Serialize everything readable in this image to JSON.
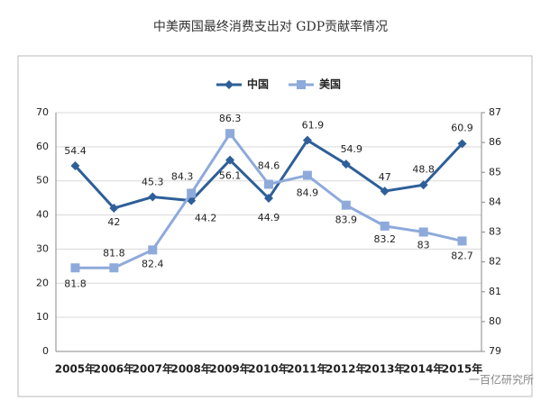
{
  "chart_data": {
    "type": "line",
    "title": "中美两国最终消费支出对 GDP贡献率情况",
    "categories": [
      "2005年",
      "2006年",
      "2007年",
      "2008年",
      "2009年",
      "2010年",
      "2011年",
      "2012年",
      "2013年",
      "2014年",
      "2015年"
    ],
    "series": [
      {
        "name": "中国",
        "color": "#2e5f98",
        "marker": "diamond",
        "values": [
          54.4,
          42,
          45.3,
          44.2,
          56.1,
          44.9,
          61.9,
          54.9,
          47,
          48.8,
          60.9
        ]
      },
      {
        "name": "美国",
        "color": "#8eaadb",
        "marker": "square",
        "axis": "y2",
        "values": [
          81.8,
          81.8,
          82.4,
          84.3,
          86.3,
          84.6,
          84.9,
          83.9,
          83.2,
          83,
          82.7
        ]
      }
    ],
    "ylim": [
      0,
      70
    ],
    "yticks": [
      0,
      10,
      20,
      30,
      40,
      50,
      60,
      70
    ],
    "y2lim": [
      79,
      87
    ],
    "y2ticks": [
      79,
      80,
      81,
      82,
      83,
      84,
      85,
      86,
      87
    ],
    "grid": true,
    "legend": "top",
    "watermark": "一百亿研究所"
  }
}
